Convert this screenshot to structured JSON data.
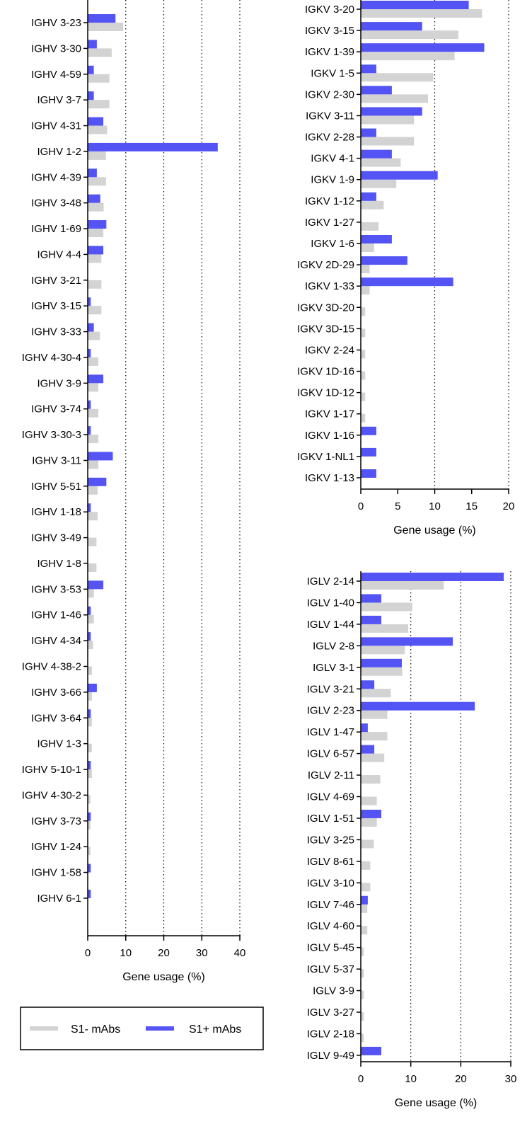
{
  "colors": {
    "s1_neg": "#d3d3d3",
    "s1_pos": "#5454f4",
    "axis": "#000000",
    "grid": "#000000"
  },
  "legend": {
    "items": [
      {
        "label": "S1- mAbs",
        "color": "#d3d3d3"
      },
      {
        "label": "S1+ mAbs",
        "color": "#5454f4"
      }
    ]
  },
  "chart_data": [
    {
      "id": "ighv",
      "type": "bar",
      "orientation": "horizontal",
      "xlabel": "Gene usage (%)",
      "xlim": [
        0,
        40
      ],
      "xticks": [
        0,
        10,
        20,
        30,
        40
      ],
      "grid": "vertical dotted at 10, 20, 30, 40",
      "categories": [
        "IGHV 3-23",
        "IGHV 3-30",
        "IGHV 4-59",
        "IGHV 3-7",
        "IGHV 4-31",
        "IGHV 1-2",
        "IGHV 4-39",
        "IGHV 3-48",
        "IGHV 1-69",
        "IGHV 4-4",
        "IGHV 3-21",
        "IGHV 3-15",
        "IGHV 3-33",
        "IGHV 4-30-4",
        "IGHV 3-9",
        "IGHV 3-74",
        "IGHV 3-30-3",
        "IGHV 3-11",
        "IGHV 5-51",
        "IGHV 1-18",
        "IGHV 3-49",
        "IGHV 1-8",
        "IGHV 3-53",
        "IGHV 1-46",
        "IGHV 4-34",
        "IGHV 4-38-2",
        "IGHV 3-66",
        "IGHV 3-64",
        "IGHV 1-3",
        "IGHV 5-10-1",
        "IGHV 4-30-2",
        "IGHV 3-73",
        "IGHV 1-24",
        "IGHV 1-58",
        "IGHV 6-1"
      ],
      "series": [
        {
          "name": "S1+ mAbs",
          "values": [
            7.3,
            2.4,
            1.6,
            1.6,
            4.1,
            34.2,
            2.4,
            3.3,
            4.9,
            4.1,
            0,
            0.8,
            1.6,
            0.8,
            4.1,
            0.8,
            0.8,
            6.6,
            4.9,
            0.8,
            0,
            0,
            4.1,
            0.8,
            0.8,
            0,
            2.4,
            0.8,
            0,
            0.8,
            0,
            0.8,
            0,
            0.8,
            0.8
          ]
        },
        {
          "name": "S1- mAbs",
          "values": [
            9.3,
            6.3,
            5.7,
            5.7,
            5.1,
            4.8,
            4.8,
            4.2,
            4.1,
            3.6,
            3.6,
            3.6,
            3.2,
            2.8,
            2.8,
            2.8,
            2.8,
            2.8,
            2.6,
            2.6,
            2.3,
            2.3,
            1.6,
            1.6,
            1.4,
            1.1,
            1.1,
            1.1,
            1.1,
            1.1,
            0.7,
            0.7,
            0.7,
            0,
            0
          ]
        }
      ]
    },
    {
      "id": "igkv",
      "type": "bar",
      "orientation": "horizontal",
      "xlabel": "Gene usage (%)",
      "xlim": [
        0,
        20
      ],
      "xticks": [
        0,
        5,
        10,
        15,
        20
      ],
      "grid": "vertical dotted at 10, 20",
      "categories": [
        "IGKV 3-20",
        "IGKV 3-15",
        "IGKV 1-39",
        "IGKV 1-5",
        "IGKV 2-30",
        "IGKV 3-11",
        "IGKV 2-28",
        "IGKV 4-1",
        "IGKV 1-9",
        "IGKV 1-12",
        "IGKV 1-27",
        "IGKV 1-6",
        "IGKV 2D-29",
        "IGKV 1-33",
        "IGKV 3D-20",
        "IGKV 3D-15",
        "IGKV 2-24",
        "IGKV 1D-16",
        "IGKV 1D-12",
        "IGKV 1-17",
        "IGKV 1-16",
        "IGKV 1-NL1",
        "IGKV 1-13"
      ],
      "series": [
        {
          "name": "S1+ mAbs",
          "values": [
            14.6,
            8.3,
            16.7,
            2.1,
            4.2,
            8.3,
            2.1,
            4.2,
            10.4,
            2.1,
            0,
            4.2,
            6.3,
            12.5,
            0,
            0,
            0,
            0,
            0,
            0,
            2.1,
            2.1,
            2.1
          ]
        },
        {
          "name": "S1- mAbs",
          "values": [
            16.4,
            13.2,
            12.7,
            9.8,
            9.1,
            7.2,
            7.2,
            5.4,
            4.8,
            3.1,
            2.4,
            1.8,
            1.2,
            1.2,
            0.6,
            0.6,
            0.6,
            0.6,
            0.6,
            0.6,
            0,
            0,
            0
          ]
        }
      ]
    },
    {
      "id": "iglv",
      "type": "bar",
      "orientation": "horizontal",
      "xlabel": "Gene usage (%)",
      "xlim": [
        0,
        30
      ],
      "xticks": [
        0,
        10,
        20,
        30
      ],
      "grid": "vertical dotted at 10, 20, 30",
      "categories": [
        "IGLV 2-14",
        "IGLV 1-40",
        "IGLV 1-44",
        "IGLV 2-8",
        "IGLV 3-1",
        "IGLV 3-21",
        "IGLV 2-23",
        "IGLV 1-47",
        "IGLV 6-57",
        "IGLV 2-11",
        "IGLV 4-69",
        "IGLV 1-51",
        "IGLV 3-25",
        "IGLV 8-61",
        "IGLV 3-10",
        "IGLV 7-46",
        "IGLV 4-60",
        "IGLV 5-45",
        "IGLV 5-37",
        "IGLV 3-9",
        "IGLV 3-27",
        "IGLV 2-18",
        "IGLV 9-49"
      ],
      "series": [
        {
          "name": "S1+ mAbs",
          "values": [
            28.6,
            4.1,
            4.1,
            18.4,
            8.2,
            2.7,
            22.8,
            1.4,
            2.7,
            0,
            0,
            4.1,
            0,
            0,
            0,
            1.4,
            0,
            0,
            0,
            0,
            0,
            0,
            4.1
          ]
        },
        {
          "name": "S1- mAbs",
          "values": [
            16.6,
            10.3,
            9.5,
            8.8,
            8.3,
            6.0,
            5.3,
            5.3,
            4.7,
            3.9,
            3.2,
            3.2,
            2.6,
            1.9,
            1.9,
            1.3,
            1.3,
            0.6,
            0.6,
            0.6,
            0.6,
            0.6,
            0
          ]
        }
      ]
    }
  ]
}
